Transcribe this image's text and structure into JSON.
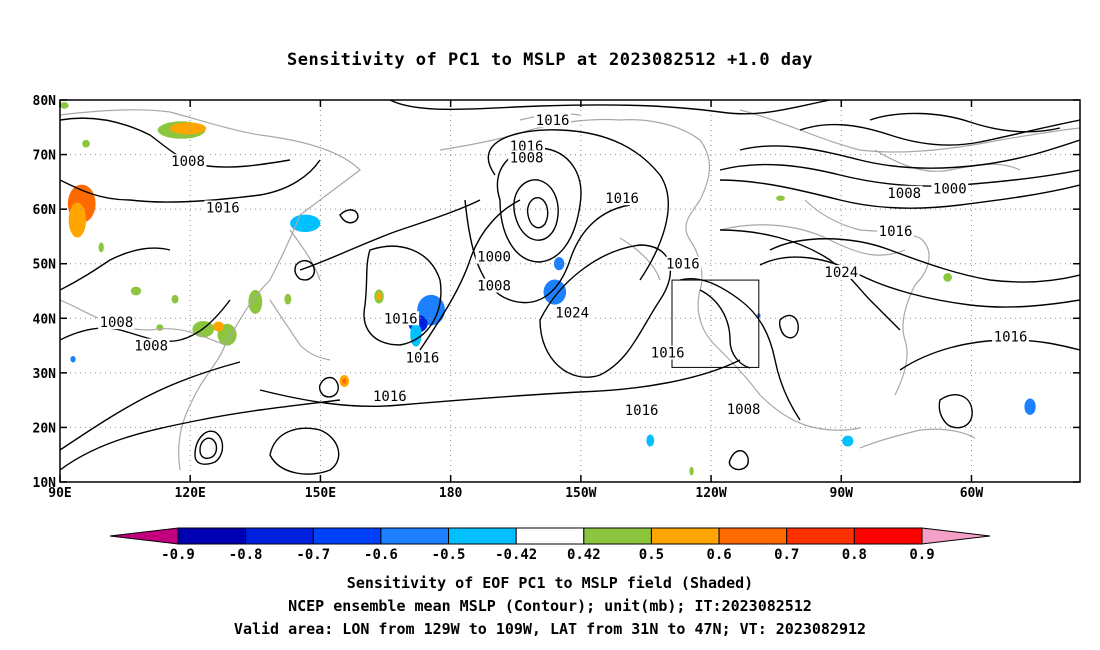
{
  "title": "Sensitivity of PC1 to MSLP at 2023082512 +1.0 day",
  "captions": {
    "line1": "Sensitivity of EOF PC1 to MSLP field (Shaded)",
    "line2": "NCEP ensemble mean MSLP (Contour); unit(mb); IT:2023082512",
    "line3": "Valid area: LON from 129W to 109W, LAT from 31N to 47N; VT: 2023082912"
  },
  "map": {
    "lon_range": [
      90,
      325
    ],
    "lat_range": [
      10,
      80
    ],
    "lat_ticks": [
      {
        "v": 80,
        "label": "80N"
      },
      {
        "v": 70,
        "label": "70N"
      },
      {
        "v": 60,
        "label": "60N"
      },
      {
        "v": 50,
        "label": "50N"
      },
      {
        "v": 40,
        "label": "40N"
      },
      {
        "v": 30,
        "label": "30N"
      },
      {
        "v": 20,
        "label": "20N"
      },
      {
        "v": 10,
        "label": "10N"
      }
    ],
    "lon_ticks": [
      {
        "v": 90,
        "label": "90E"
      },
      {
        "v": 120,
        "label": "120E"
      },
      {
        "v": 150,
        "label": "150E"
      },
      {
        "v": 180,
        "label": "180"
      },
      {
        "v": 210,
        "label": "150W"
      },
      {
        "v": 240,
        "label": "120W"
      },
      {
        "v": 270,
        "label": "90W"
      },
      {
        "v": 300,
        "label": "60W"
      }
    ],
    "valid_box": {
      "lon": [
        231,
        251
      ],
      "lat": [
        31,
        47
      ]
    },
    "contour_labels": [
      {
        "lon": 203.5,
        "lat": 76.3,
        "text": "1016"
      },
      {
        "lon": 197.5,
        "lat": 71.6,
        "text": "1016"
      },
      {
        "lon": 197.5,
        "lat": 69.5,
        "text": "1008"
      },
      {
        "lon": 219.5,
        "lat": 62.0,
        "text": "1016"
      },
      {
        "lon": 119.5,
        "lat": 68.8,
        "text": "1008"
      },
      {
        "lon": 127.5,
        "lat": 60.3,
        "text": "1016"
      },
      {
        "lon": 284.5,
        "lat": 63.0,
        "text": "1008"
      },
      {
        "lon": 295.0,
        "lat": 63.8,
        "text": "1000"
      },
      {
        "lon": 282.5,
        "lat": 56.0,
        "text": "1016"
      },
      {
        "lon": 233.5,
        "lat": 50.0,
        "text": "1016"
      },
      {
        "lon": 270.0,
        "lat": 48.5,
        "text": "1024"
      },
      {
        "lon": 190.0,
        "lat": 51.3,
        "text": "1000"
      },
      {
        "lon": 190.0,
        "lat": 46.0,
        "text": "1008"
      },
      {
        "lon": 208.0,
        "lat": 41.1,
        "text": "1024"
      },
      {
        "lon": 103.0,
        "lat": 39.3,
        "text": "1008"
      },
      {
        "lon": 111.0,
        "lat": 35.0,
        "text": "1008"
      },
      {
        "lon": 168.5,
        "lat": 40.0,
        "text": "1016"
      },
      {
        "lon": 173.5,
        "lat": 32.8,
        "text": "1016"
      },
      {
        "lon": 166.0,
        "lat": 25.8,
        "text": "1016"
      },
      {
        "lon": 230.0,
        "lat": 33.7,
        "text": "1016"
      },
      {
        "lon": 224.0,
        "lat": 23.2,
        "text": "1016"
      },
      {
        "lon": 247.5,
        "lat": 23.4,
        "text": "1008"
      },
      {
        "lon": 309.0,
        "lat": 36.7,
        "text": "1016"
      }
    ]
  },
  "colorbar": {
    "colors": [
      "#c0007f",
      "#0000b3",
      "#0020e0",
      "#0040ff",
      "#1c80ff",
      "#00c0ff",
      "#ffffff",
      "#8cc63f",
      "#ffa500",
      "#ff6a00",
      "#ff3000",
      "#ff0000",
      "#f5a0c8"
    ],
    "labels": [
      "-0.9",
      "-0.8",
      "-0.7",
      "-0.6",
      "-0.5",
      "-0.42",
      "0.42",
      "0.5",
      "0.6",
      "0.7",
      "0.8",
      "0.9"
    ]
  },
  "shading": [
    {
      "lon": 95,
      "lat": 61,
      "rx": 3.2,
      "ry": 3.5,
      "color": "#ff6a00"
    },
    {
      "lon": 94,
      "lat": 58,
      "rx": 2.0,
      "ry": 3.2,
      "color": "#ffa500"
    },
    {
      "lon": 118,
      "lat": 74.5,
      "rx": 5.5,
      "ry": 1.6,
      "color": "#8cc63f"
    },
    {
      "lon": 119.5,
      "lat": 74.8,
      "rx": 4.2,
      "ry": 1.1,
      "color": "#ffa500"
    },
    {
      "lon": 146.5,
      "lat": 57.4,
      "rx": 3.5,
      "ry": 1.6,
      "color": "#00c0ff"
    },
    {
      "lon": 175.5,
      "lat": 41.5,
      "rx": 3.2,
      "ry": 2.8,
      "color": "#1c80ff"
    },
    {
      "lon": 172.5,
      "lat": 39.0,
      "rx": 2.2,
      "ry": 1.6,
      "color": "#0020e0"
    },
    {
      "lon": 172.0,
      "lat": 37.0,
      "rx": 1.3,
      "ry": 2.2,
      "color": "#00c0ff"
    },
    {
      "lon": 204.0,
      "lat": 44.8,
      "rx": 2.6,
      "ry": 2.3,
      "color": "#1c80ff"
    },
    {
      "lon": 205.0,
      "lat": 50.0,
      "rx": 1.2,
      "ry": 1.2,
      "color": "#1c80ff"
    },
    {
      "lon": 226.0,
      "lat": 17.6,
      "rx": 0.9,
      "ry": 1.1,
      "color": "#00c0ff"
    },
    {
      "lon": 226.0,
      "lat": 22.8,
      "rx": 0.6,
      "ry": 0.6,
      "color": "#00c0ff"
    },
    {
      "lon": 313.5,
      "lat": 23.8,
      "rx": 1.3,
      "ry": 1.5,
      "color": "#1c80ff"
    },
    {
      "lon": 271.5,
      "lat": 17.5,
      "rx": 1.3,
      "ry": 1.0,
      "color": "#00c0ff"
    },
    {
      "lon": 135.0,
      "lat": 43.0,
      "rx": 1.6,
      "ry": 2.2,
      "color": "#8cc63f"
    },
    {
      "lon": 128.5,
      "lat": 37.0,
      "rx": 2.2,
      "ry": 2.0,
      "color": "#8cc63f"
    },
    {
      "lon": 123.0,
      "lat": 38.0,
      "rx": 2.5,
      "ry": 1.5,
      "color": "#8cc63f"
    },
    {
      "lon": 126.5,
      "lat": 38.5,
      "rx": 1.3,
      "ry": 0.9,
      "color": "#ffa500"
    },
    {
      "lon": 142.5,
      "lat": 43.5,
      "rx": 0.8,
      "ry": 1.0,
      "color": "#8cc63f"
    },
    {
      "lon": 163.5,
      "lat": 44.0,
      "rx": 1.1,
      "ry": 1.3,
      "color": "#8cc63f"
    },
    {
      "lon": 163.5,
      "lat": 44.0,
      "rx": 0.6,
      "ry": 0.7,
      "color": "#ffa500"
    },
    {
      "lon": 107.5,
      "lat": 45.0,
      "rx": 1.2,
      "ry": 0.8,
      "color": "#8cc63f"
    },
    {
      "lon": 116.5,
      "lat": 43.5,
      "rx": 0.8,
      "ry": 0.8,
      "color": "#8cc63f"
    },
    {
      "lon": 113.0,
      "lat": 38.3,
      "rx": 0.8,
      "ry": 0.6,
      "color": "#8cc63f"
    },
    {
      "lon": 91.0,
      "lat": 79.0,
      "rx": 1.0,
      "ry": 0.6,
      "color": "#8cc63f"
    },
    {
      "lon": 96.0,
      "lat": 72.0,
      "rx": 0.9,
      "ry": 0.7,
      "color": "#8cc63f"
    },
    {
      "lon": 99.5,
      "lat": 53.0,
      "rx": 0.6,
      "ry": 0.9,
      "color": "#8cc63f"
    },
    {
      "lon": 155.5,
      "lat": 28.5,
      "rx": 1.1,
      "ry": 1.1,
      "color": "#ffa500"
    },
    {
      "lon": 155.5,
      "lat": 28.5,
      "rx": 0.5,
      "ry": 0.5,
      "color": "#ff6a00"
    },
    {
      "lon": 256.0,
      "lat": 62.0,
      "rx": 1.0,
      "ry": 0.5,
      "color": "#8cc63f"
    },
    {
      "lon": 294.5,
      "lat": 47.5,
      "rx": 1.0,
      "ry": 0.8,
      "color": "#8cc63f"
    },
    {
      "lon": 235.5,
      "lat": 12.0,
      "rx": 0.5,
      "ry": 0.8,
      "color": "#8cc63f"
    },
    {
      "lon": 93.0,
      "lat": 32.5,
      "rx": 0.6,
      "ry": 0.6,
      "color": "#1c80ff"
    },
    {
      "lon": 251.0,
      "lat": 40.5,
      "rx": 0.4,
      "ry": 0.4,
      "color": "#1c80ff"
    }
  ]
}
